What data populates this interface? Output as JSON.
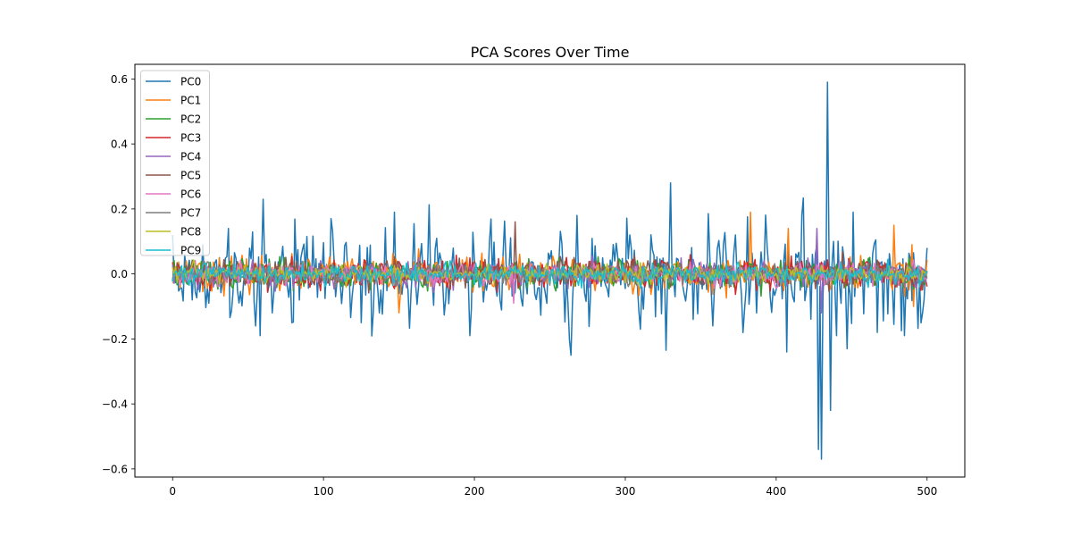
{
  "chart_data": {
    "type": "line",
    "title": "PCA Scores Over Time",
    "xlabel": "",
    "ylabel": "",
    "xlim": [
      -25,
      525
    ],
    "ylim": [
      -0.625,
      0.645
    ],
    "x_ticks": [
      0,
      100,
      200,
      300,
      400,
      500
    ],
    "x_tick_labels": [
      "0",
      "100",
      "200",
      "300",
      "400",
      "500"
    ],
    "y_ticks": [
      -0.6,
      -0.4,
      -0.2,
      0.0,
      0.2,
      0.4,
      0.6
    ],
    "y_tick_labels": [
      "−0.6",
      "−0.4",
      "−0.2",
      "0.0",
      "0.2",
      "0.4",
      "0.6"
    ],
    "grid": false,
    "legend_position": "top-left",
    "n_points": 501,
    "series": [
      {
        "name": "PC0",
        "color": "#1f77b4",
        "amplitude": 0.06,
        "seed": 11,
        "anchors": [
          [
            0,
            0.12
          ],
          [
            1,
            -0.02
          ],
          [
            13,
            -0.08
          ],
          [
            20,
            0.09
          ],
          [
            24,
            -0.09
          ],
          [
            37,
            0.14
          ],
          [
            55,
            -0.16
          ],
          [
            58,
            -0.19
          ],
          [
            60,
            0.23
          ],
          [
            66,
            -0.12
          ],
          [
            79,
            -0.15
          ],
          [
            105,
            0.17
          ],
          [
            108,
            -0.07
          ],
          [
            125,
            -0.15
          ],
          [
            137,
            -0.12
          ],
          [
            147,
            0.19
          ],
          [
            156,
            -0.05
          ],
          [
            197,
            -0.19
          ],
          [
            210,
            0.1
          ],
          [
            262,
            -0.09
          ],
          [
            264,
            -0.25
          ],
          [
            268,
            0.18
          ],
          [
            303,
            0.12
          ],
          [
            310,
            -0.17
          ],
          [
            322,
            -0.05
          ],
          [
            330,
            0.28
          ],
          [
            333,
            -0.07
          ],
          [
            345,
            -0.14
          ],
          [
            358,
            -0.16
          ],
          [
            373,
            0.12
          ],
          [
            387,
            -0.12
          ],
          [
            407,
            -0.24
          ],
          [
            417,
            0.18
          ],
          [
            428,
            -0.54
          ],
          [
            430,
            -0.57
          ],
          [
            432,
            0.04
          ],
          [
            434,
            0.59
          ],
          [
            436,
            -0.42
          ],
          [
            438,
            0.1
          ],
          [
            440,
            -0.19
          ],
          [
            451,
            0.19
          ],
          [
            467,
            -0.18
          ],
          [
            485,
            -0.19
          ],
          [
            497,
            -0.12
          ],
          [
            500,
            0.08
          ]
        ]
      },
      {
        "name": "PC1",
        "color": "#ff7f0e",
        "amplitude": 0.025,
        "seed": 23,
        "anchors": [
          [
            150,
            -0.12
          ],
          [
            151,
            -0.06
          ],
          [
            383,
            0.19
          ],
          [
            384,
            -0.02
          ],
          [
            408,
            0.14
          ],
          [
            409,
            -0.03
          ],
          [
            478,
            0.15
          ],
          [
            479,
            0.01
          ],
          [
            490,
            0.09
          ],
          [
            491,
            -0.1
          ],
          [
            494,
            -0.02
          ]
        ]
      },
      {
        "name": "PC2",
        "color": "#2ca02c",
        "amplitude": 0.022,
        "seed": 37,
        "anchors": []
      },
      {
        "name": "PC3",
        "color": "#d62728",
        "amplitude": 0.022,
        "seed": 41,
        "anchors": []
      },
      {
        "name": "PC4",
        "color": "#9467bd",
        "amplitude": 0.02,
        "seed": 53,
        "anchors": [
          [
            427,
            0.14
          ],
          [
            428,
            -0.03
          ],
          [
            430,
            -0.12
          ],
          [
            431,
            0.01
          ]
        ]
      },
      {
        "name": "PC5",
        "color": "#8c564b",
        "amplitude": 0.02,
        "seed": 67,
        "anchors": [
          [
            227,
            0.16
          ],
          [
            228,
            -0.01
          ]
        ]
      },
      {
        "name": "PC6",
        "color": "#e377c2",
        "amplitude": 0.018,
        "seed": 71,
        "anchors": [
          [
            226,
            -0.09
          ],
          [
            227,
            0.01
          ]
        ]
      },
      {
        "name": "PC7",
        "color": "#7f7f7f",
        "amplitude": 0.015,
        "seed": 83,
        "anchors": []
      },
      {
        "name": "PC8",
        "color": "#bcbd22",
        "amplitude": 0.014,
        "seed": 97,
        "anchors": []
      },
      {
        "name": "PC9",
        "color": "#17becf",
        "amplitude": 0.016,
        "seed": 101,
        "anchors": []
      }
    ]
  }
}
